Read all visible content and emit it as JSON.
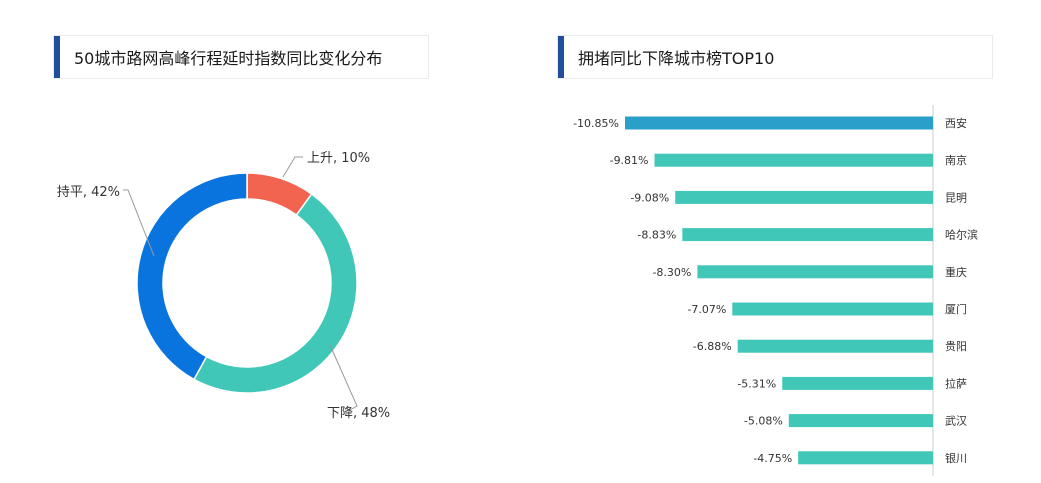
{
  "chart_data": [
    {
      "type": "pie",
      "title": "50城市路网高峰行程延时指数同比变化分布",
      "donut": true,
      "slices": [
        {
          "label": "上升",
          "value": 10,
          "display": "上升, 10%",
          "color": "#f26450"
        },
        {
          "label": "下降",
          "value": 48,
          "display": "下降, 48%",
          "color": "#40c7b8"
        },
        {
          "label": "持平",
          "value": 42,
          "display": "持平, 42%",
          "color": "#0a74de"
        }
      ]
    },
    {
      "type": "bar",
      "orientation": "horizontal",
      "title": "拥堵同比下降城市榜TOP10",
      "categories": [
        "西安",
        "南京",
        "昆明",
        "哈尔滨",
        "重庆",
        "厦门",
        "贵阳",
        "拉萨",
        "武汉",
        "银川"
      ],
      "values": [
        -10.85,
        -9.81,
        -9.08,
        -8.83,
        -8.3,
        -7.07,
        -6.88,
        -5.31,
        -5.08,
        -4.75
      ],
      "value_labels": [
        "-10.85%",
        "-9.81%",
        "-9.08%",
        "-8.83%",
        "-8.30%",
        "-7.07%",
        "-6.88%",
        "-5.31%",
        "-5.08%",
        "-4.75%"
      ],
      "xlim": [
        -10.85,
        0
      ],
      "colors": {
        "highlight": "#2aa0c8",
        "bar": "#40c7b8",
        "axis": "#cccccc"
      }
    }
  ]
}
